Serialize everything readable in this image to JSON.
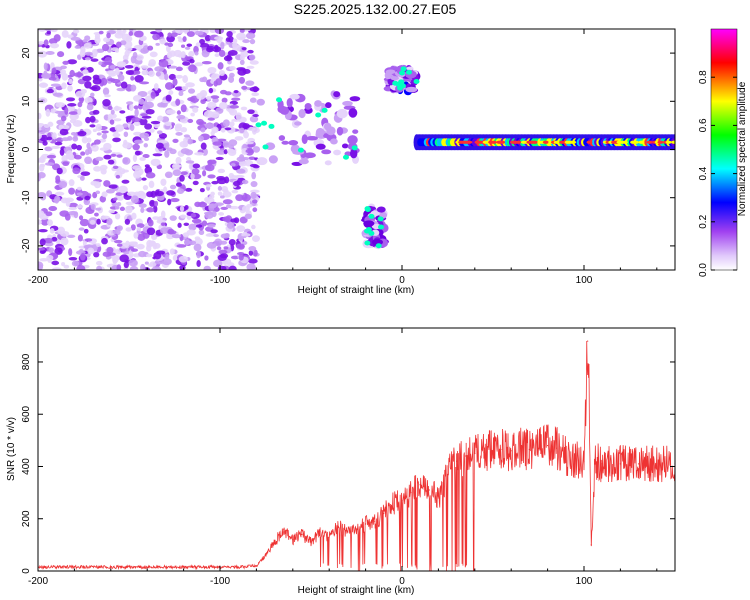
{
  "title": "S225.2025.132.00.27.E05",
  "chart_data": [
    {
      "type": "heatmap",
      "xlabel": "Height of straight line (km)",
      "ylabel": "Frequency (Hz)",
      "colorbar_label": "Normalized spectral amplitude",
      "xlim": [
        -200,
        150
      ],
      "ylim": [
        -25,
        25
      ],
      "xticks": [
        -200,
        -100,
        0,
        100
      ],
      "yticks": [
        -20,
        -10,
        0,
        10,
        20
      ],
      "colorbar_range": [
        0,
        1
      ],
      "colorbar_ticks": [
        0.0,
        0.2,
        0.4,
        0.6,
        0.8
      ],
      "colormap": [
        "#ffffff",
        "#c9a0f5",
        "#6a00e0",
        "#0000ff",
        "#00ffff",
        "#00ff00",
        "#ffff00",
        "#ff0000",
        "#ff00ff"
      ],
      "features": [
        {
          "x": [
            -200,
            -80
          ],
          "y": [
            -25,
            25
          ],
          "amplitude": 0.2,
          "note": "scattered noise"
        },
        {
          "x": [
            -80,
            -25
          ],
          "y": [
            -3,
            12
          ],
          "amplitude": 0.3
        },
        {
          "x": [
            -20,
            -10
          ],
          "y": [
            -20,
            -12
          ],
          "amplitude": 0.45
        },
        {
          "x": [
            -8,
            8
          ],
          "y": [
            12,
            17
          ],
          "amplitude": 0.45
        },
        {
          "x": [
            8,
            150
          ],
          "y": [
            0,
            3
          ],
          "amplitude": 0.95,
          "peak_y": 1.5
        }
      ]
    },
    {
      "type": "line",
      "xlabel": "Height of straight line (km)",
      "ylabel": "SNR (10 * v/v)",
      "xlim": [
        -200,
        150
      ],
      "ylim": [
        0,
        930
      ],
      "xticks": [
        -200,
        -100,
        0,
        100
      ],
      "yticks": [
        0,
        200,
        400,
        600,
        800
      ],
      "color": "#ee3333",
      "series": [
        {
          "x": [
            -200,
            -180,
            -160,
            -140,
            -120,
            -100,
            -90,
            -80,
            -75,
            -70,
            -65,
            -60,
            -55,
            -50,
            -45,
            -40,
            -35,
            -30,
            -25,
            -20,
            -15,
            -10,
            -5,
            0,
            5,
            10,
            15,
            20,
            25,
            30,
            35,
            40,
            45,
            50,
            55,
            60,
            65,
            70,
            75,
            80,
            85,
            90,
            95,
            100,
            102,
            104,
            106,
            110,
            120,
            130,
            140,
            150
          ],
          "y": [
            15,
            15,
            15,
            15,
            15,
            15,
            15,
            20,
            60,
            110,
            160,
            120,
            140,
            110,
            150,
            130,
            170,
            150,
            160,
            180,
            190,
            220,
            260,
            270,
            300,
            330,
            310,
            280,
            370,
            420,
            440,
            450,
            455,
            460,
            465,
            460,
            470,
            465,
            470,
            480,
            470,
            440,
            430,
            420,
            880,
            100,
            420,
            410,
            410,
            410,
            410,
            410
          ]
        }
      ]
    }
  ]
}
